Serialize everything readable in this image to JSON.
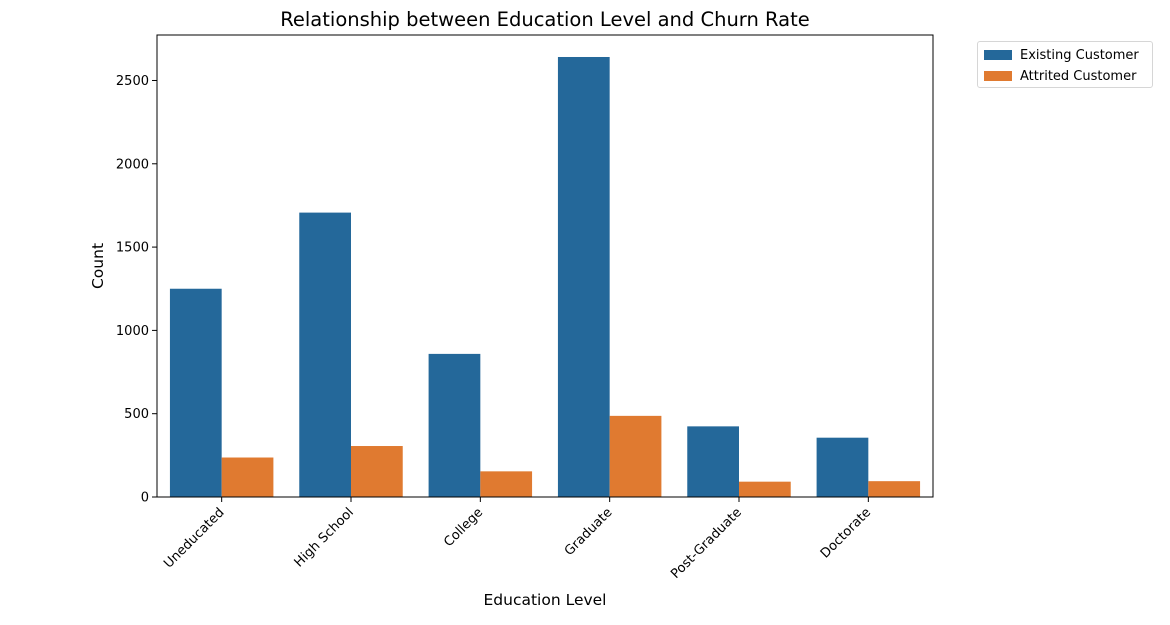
{
  "chart_data": {
    "type": "bar",
    "title": "Relationship between Education Level and Churn Rate",
    "xlabel": "Education Level",
    "ylabel": "Count",
    "categories": [
      "Uneducated",
      "High School",
      "College",
      "Graduate",
      "Post-Graduate",
      "Doctorate"
    ],
    "series": [
      {
        "name": "Existing Customer",
        "color": "#24689a",
        "values": [
          1250,
          1707,
          859,
          2641,
          424,
          356
        ]
      },
      {
        "name": "Attrited Customer",
        "color": "#e07a30",
        "values": [
          237,
          306,
          154,
          487,
          92,
          95
        ]
      }
    ],
    "ylim": [
      0,
      2773
    ],
    "yticks": [
      0,
      500,
      1000,
      1500,
      2000,
      2500
    ],
    "grid": false,
    "legend_position": "outside-top-right"
  }
}
